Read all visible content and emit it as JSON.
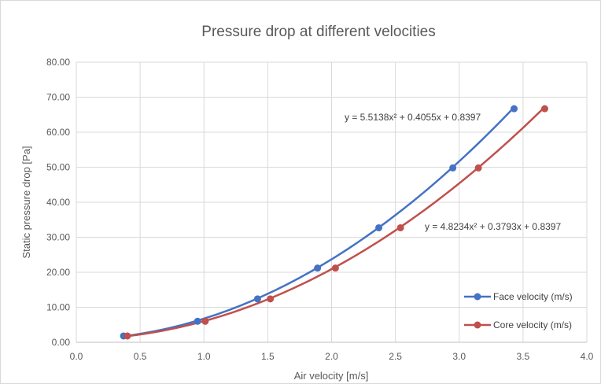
{
  "chart_data": {
    "type": "scatter",
    "title": "Pressure drop at different velocities",
    "xlabel": "Air velocity [m/s]",
    "ylabel": "Static pressure drop [Pa]",
    "xlim": [
      0,
      4
    ],
    "ylim": [
      0,
      80
    ],
    "x_ticks": [
      "0.0",
      "0.5",
      "1.0",
      "1.5",
      "2.0",
      "2.5",
      "3.0",
      "3.5",
      "4.0"
    ],
    "y_ticks": [
      "0.00",
      "10.00",
      "20.00",
      "30.00",
      "40.00",
      "50.00",
      "60.00",
      "70.00",
      "80.00"
    ],
    "grid": true,
    "legend_position": "bottom-right",
    "series": [
      {
        "name": "Face velocity (m/s)",
        "color": "#4472c4",
        "x": [
          0.37,
          0.95,
          1.42,
          1.89,
          2.37,
          2.95,
          3.43
        ],
        "y": [
          1.8,
          6.0,
          12.4,
          21.2,
          32.7,
          49.8,
          66.7
        ],
        "trendline": {
          "equation": "y = 5.5138x² + 0.4055x + 0.8397",
          "coefficients": [
            5.5138,
            0.4055,
            0.8397
          ]
        }
      },
      {
        "name": "Core velocity (m/s)",
        "color": "#c0504d",
        "x": [
          0.4,
          1.01,
          1.52,
          2.03,
          2.54,
          3.15,
          3.67
        ],
        "y": [
          1.8,
          6.0,
          12.4,
          21.2,
          32.7,
          49.8,
          66.7
        ],
        "trendline": {
          "equation": "y = 4.8234x² + 0.3793x + 0.8397",
          "coefficients": [
            4.8234,
            0.3793,
            0.8397
          ]
        }
      }
    ]
  }
}
